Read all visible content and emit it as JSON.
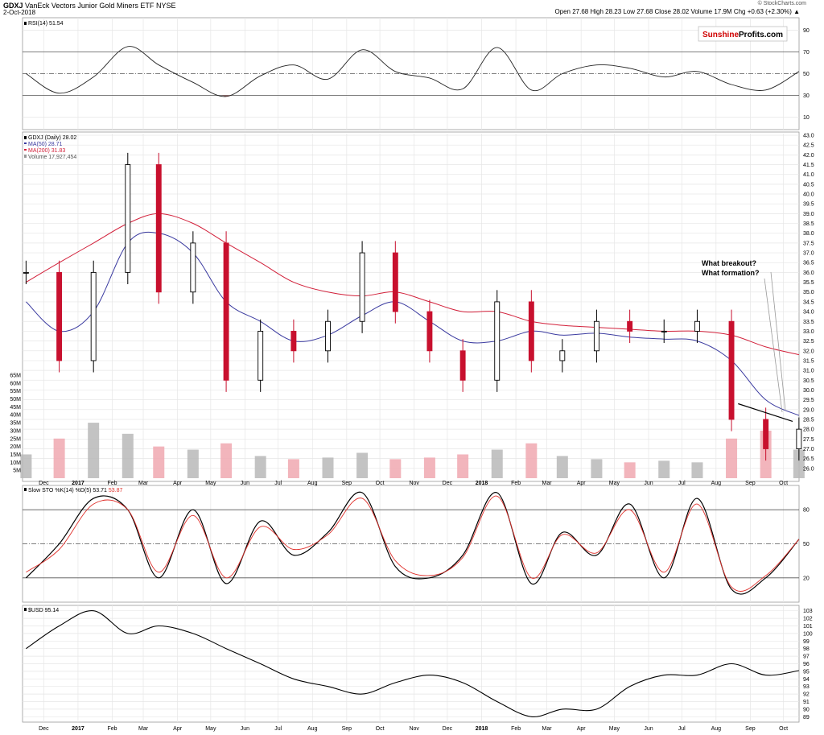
{
  "header": {
    "symbol": "GDXJ",
    "name": "VanEck Vectors Junior Gold Miners ETF",
    "exchange": "NYSE",
    "date": "2-Oct-2018",
    "watermark": "© StockCharts.com",
    "quote": "Open 27.68  High 28.23  Low 27.68  Close 28.02  Volume 17.9M  Chg +0.63 (+2.30%) ▲"
  },
  "logo": {
    "part1": "Sunshine",
    "part2": "Profits",
    "part3": ".com"
  },
  "annotation": {
    "line1": "What breakout?",
    "line2": "What formation?"
  },
  "chart_data": [
    {
      "type": "line",
      "panel": "rsi",
      "legend": "RSI(14) 51.54",
      "ylim": [
        0,
        100
      ],
      "yticks": [
        10,
        30,
        50,
        70,
        90
      ],
      "reference_lines": [
        30,
        50,
        70
      ],
      "x": [
        "2016-11",
        "2016-12",
        "2017-01",
        "2017-02",
        "2017-03",
        "2017-04",
        "2017-05",
        "2017-06",
        "2017-07",
        "2017-08",
        "2017-09",
        "2017-10",
        "2017-11",
        "2017-12",
        "2018-01",
        "2018-02",
        "2018-03",
        "2018-04",
        "2018-05",
        "2018-06",
        "2018-07",
        "2018-08",
        "2018-09",
        "2018-10"
      ],
      "values": [
        50,
        32,
        47,
        75,
        58,
        42,
        29,
        48,
        58,
        45,
        72,
        52,
        46,
        36,
        74,
        35,
        50,
        58,
        55,
        47,
        52,
        40,
        35,
        52
      ]
    },
    {
      "type": "candlestick",
      "panel": "price",
      "legend": [
        "GDXJ (Daily) 28.02",
        "MA(50) 28.71",
        "MA(200) 31.83",
        "Volume 17,927,454"
      ],
      "ylim": [
        25.5,
        43.0
      ],
      "yticks": [
        26.0,
        26.5,
        27.0,
        27.5,
        28.0,
        28.5,
        29.0,
        29.5,
        30.0,
        30.5,
        31.0,
        31.5,
        32.0,
        32.5,
        33.0,
        33.5,
        34.0,
        34.5,
        35.0,
        35.5,
        36.0,
        36.5,
        37.0,
        37.5,
        38.0,
        38.5,
        39.0,
        39.5,
        40.0,
        40.5,
        41.0,
        41.5,
        42.0,
        42.5,
        43.0
      ],
      "x": [
        "2016-11",
        "2016-12",
        "2017-01",
        "2017-02",
        "2017-03",
        "2017-04",
        "2017-05",
        "2017-06",
        "2017-07",
        "2017-08",
        "2017-09",
        "2017-10",
        "2017-11",
        "2017-12",
        "2018-01",
        "2018-02",
        "2018-03",
        "2018-04",
        "2018-05",
        "2018-06",
        "2018-07",
        "2018-08",
        "2018-09",
        "2018-10"
      ],
      "close": [
        36.0,
        31.5,
        36.0,
        41.5,
        35.0,
        37.5,
        30.5,
        33.0,
        32.0,
        33.5,
        37.0,
        34.0,
        32.0,
        30.5,
        34.5,
        31.5,
        32.0,
        33.5,
        33.0,
        33.0,
        33.5,
        28.5,
        27.0,
        28.0
      ],
      "ma50": [
        34.5,
        33.0,
        34.0,
        37.5,
        38.0,
        37.0,
        34.5,
        33.5,
        32.5,
        32.8,
        33.8,
        34.5,
        33.5,
        32.5,
        32.5,
        33.0,
        32.8,
        32.9,
        32.7,
        32.6,
        32.5,
        31.5,
        29.5,
        28.7
      ],
      "ma200": [
        35.5,
        36.5,
        37.5,
        38.5,
        39.0,
        38.5,
        37.5,
        36.5,
        35.5,
        35.0,
        34.8,
        35.0,
        34.5,
        34.0,
        34.0,
        33.5,
        33.3,
        33.2,
        33.1,
        33.0,
        33.0,
        32.8,
        32.2,
        31.8
      ],
      "volume_axis": {
        "ylim": [
          0,
          65
        ],
        "unit": "M",
        "yticks": [
          "5M",
          "10M",
          "15M",
          "20M",
          "25M",
          "30M",
          "35M",
          "40M",
          "45M",
          "50M",
          "55M",
          "60M",
          "65M"
        ]
      },
      "volume": [
        15,
        25,
        35,
        28,
        20,
        18,
        22,
        14,
        12,
        13,
        16,
        12,
        13,
        15,
        18,
        22,
        14,
        12,
        10,
        11,
        10,
        25,
        30,
        18
      ],
      "trendline": {
        "from": [
          "2018-08-21",
          29.3
        ],
        "to": [
          "2018-10-02",
          28.4
        ]
      }
    },
    {
      "type": "line",
      "panel": "stochastic",
      "legend": [
        "Slow STO %K(14) %D(5) 53.71",
        "53.87"
      ],
      "ylim": [
        0,
        100
      ],
      "yticks": [
        20,
        50,
        80
      ],
      "reference_lines": [
        20,
        50,
        80
      ],
      "x": [
        "2016-11",
        "2016-12",
        "2017-01",
        "2017-02",
        "2017-03",
        "2017-04",
        "2017-05",
        "2017-06",
        "2017-07",
        "2017-08",
        "2017-09",
        "2017-10",
        "2017-11",
        "2017-12",
        "2018-01",
        "2018-02",
        "2018-03",
        "2018-04",
        "2018-05",
        "2018-06",
        "2018-07",
        "2018-08",
        "2018-09",
        "2018-10"
      ],
      "series": [
        {
          "name": "%K",
          "color": "#000000",
          "values": [
            20,
            50,
            90,
            80,
            20,
            80,
            15,
            70,
            40,
            60,
            95,
            30,
            20,
            40,
            95,
            15,
            60,
            40,
            85,
            20,
            90,
            10,
            20,
            54
          ]
        },
        {
          "name": "%D",
          "color": "#e0302b",
          "values": [
            25,
            45,
            85,
            80,
            25,
            75,
            20,
            65,
            45,
            58,
            90,
            35,
            22,
            38,
            92,
            20,
            58,
            42,
            80,
            25,
            85,
            12,
            22,
            54
          ]
        }
      ]
    },
    {
      "type": "line",
      "panel": "usd",
      "legend": "$USD 95.14",
      "ylim": [
        88.5,
        103.5
      ],
      "yticks": [
        89,
        90,
        91,
        92,
        93,
        94,
        95,
        96,
        97,
        98,
        99,
        100,
        101,
        102,
        103
      ],
      "x": [
        "2016-11",
        "2016-12",
        "2017-01",
        "2017-02",
        "2017-03",
        "2017-04",
        "2017-05",
        "2017-06",
        "2017-07",
        "2017-08",
        "2017-09",
        "2017-10",
        "2017-11",
        "2017-12",
        "2018-01",
        "2018-02",
        "2018-03",
        "2018-04",
        "2018-05",
        "2018-06",
        "2018-07",
        "2018-08",
        "2018-09",
        "2018-10"
      ],
      "values": [
        98,
        101,
        103,
        100,
        101,
        100,
        98,
        96,
        94,
        93,
        92,
        93.5,
        94.5,
        93.5,
        91,
        89,
        90,
        90,
        93,
        94.5,
        94.5,
        96,
        94.5,
        95.1
      ]
    }
  ],
  "xaxis": {
    "labels": [
      {
        "text": "Dec",
        "date": "2016-12-01",
        "bold": false
      },
      {
        "text": "2017",
        "date": "2017-01-01",
        "bold": true
      },
      {
        "text": "Feb",
        "date": "2017-02-01",
        "bold": false
      },
      {
        "text": "Mar",
        "date": "2017-03-01",
        "bold": false
      },
      {
        "text": "Apr",
        "date": "2017-04-01",
        "bold": false
      },
      {
        "text": "May",
        "date": "2017-05-01",
        "bold": false
      },
      {
        "text": "Jun",
        "date": "2017-06-01",
        "bold": false
      },
      {
        "text": "Jul",
        "date": "2017-07-01",
        "bold": false
      },
      {
        "text": "Aug",
        "date": "2017-08-01",
        "bold": false
      },
      {
        "text": "Sep",
        "date": "2017-09-01",
        "bold": false
      },
      {
        "text": "Oct",
        "date": "2017-10-01",
        "bold": false
      },
      {
        "text": "Nov",
        "date": "2017-11-01",
        "bold": false
      },
      {
        "text": "Dec",
        "date": "2017-12-01",
        "bold": false
      },
      {
        "text": "2018",
        "date": "2018-01-01",
        "bold": true
      },
      {
        "text": "Feb",
        "date": "2018-02-01",
        "bold": false
      },
      {
        "text": "Mar",
        "date": "2018-03-01",
        "bold": false
      },
      {
        "text": "Apr",
        "date": "2018-04-01",
        "bold": false
      },
      {
        "text": "May",
        "date": "2018-05-01",
        "bold": false
      },
      {
        "text": "Jun",
        "date": "2018-06-01",
        "bold": false
      },
      {
        "text": "Jul",
        "date": "2018-07-01",
        "bold": false
      },
      {
        "text": "Aug",
        "date": "2018-08-01",
        "bold": false
      },
      {
        "text": "Sep",
        "date": "2018-09-01",
        "bold": false
      },
      {
        "text": "Oct",
        "date": "2018-10-01",
        "bold": false
      }
    ]
  },
  "colors": {
    "up": "#000000",
    "down": "#c8102e",
    "ma50": "#3b3ba0",
    "ma200": "#d2203a",
    "rsi_fill": "#7b3f3f",
    "volume_up": "#b8b8b8",
    "volume_down": "#f0a8b0",
    "grid": "#e6e6e6",
    "logo_red": "#d00000"
  }
}
